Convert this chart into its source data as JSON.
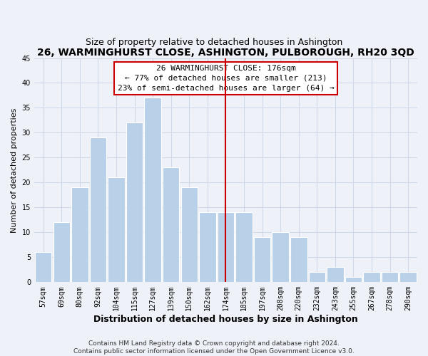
{
  "title": "26, WARMINGHURST CLOSE, ASHINGTON, PULBOROUGH, RH20 3QD",
  "subtitle": "Size of property relative to detached houses in Ashington",
  "xlabel": "Distribution of detached houses by size in Ashington",
  "ylabel": "Number of detached properties",
  "bar_labels": [
    "57sqm",
    "69sqm",
    "80sqm",
    "92sqm",
    "104sqm",
    "115sqm",
    "127sqm",
    "139sqm",
    "150sqm",
    "162sqm",
    "174sqm",
    "185sqm",
    "197sqm",
    "208sqm",
    "220sqm",
    "232sqm",
    "243sqm",
    "255sqm",
    "267sqm",
    "278sqm",
    "290sqm"
  ],
  "bar_heights": [
    6,
    12,
    19,
    29,
    21,
    32,
    37,
    23,
    19,
    14,
    14,
    14,
    9,
    10,
    9,
    2,
    3,
    1,
    2,
    2,
    2
  ],
  "bar_color": "#b8d0e8",
  "bar_edge_color": "#ffffff",
  "vline_x_index": 10,
  "vline_color": "#cc0000",
  "annotation_line1": "26 WARMINGHURST CLOSE: 176sqm",
  "annotation_line2": "← 77% of detached houses are smaller (213)",
  "annotation_line3": "23% of semi-detached houses are larger (64) →",
  "ylim": [
    0,
    45
  ],
  "yticks": [
    0,
    5,
    10,
    15,
    20,
    25,
    30,
    35,
    40,
    45
  ],
  "grid_color": "#d0d8e8",
  "background_color": "#eef2f8",
  "footer_text": "Contains HM Land Registry data © Crown copyright and database right 2024.\nContains public sector information licensed under the Open Government Licence v3.0.",
  "title_fontsize": 10,
  "subtitle_fontsize": 9,
  "xlabel_fontsize": 9,
  "ylabel_fontsize": 8,
  "tick_fontsize": 7,
  "annotation_fontsize": 8,
  "footer_fontsize": 6.5
}
